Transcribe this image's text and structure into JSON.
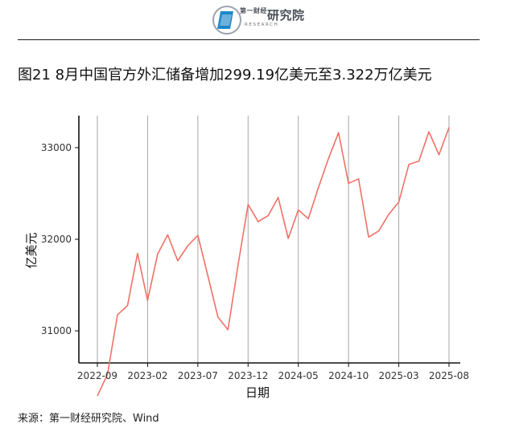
{
  "header": {
    "logo_text": "研究院",
    "logo_small": "第一财经",
    "logo_sub": "RESEARCH"
  },
  "title": "图21 8月中国官方外汇储备增加299.19亿美元至3.322万亿美元",
  "source": "来源：第一财经研究院、Wind",
  "colors": {
    "line": "#f07167",
    "grid": "#a6a6a6",
    "axis": "#111111"
  },
  "chart_data": {
    "type": "line",
    "xlabel": "日期",
    "ylabel": "亿美元",
    "x_ticks": [
      "2022-09",
      "2023-02",
      "2023-07",
      "2023-12",
      "2024-05",
      "2024-10",
      "2025-03",
      "2025-08"
    ],
    "y_ticks": [
      31000,
      32000,
      33000
    ],
    "ylim": [
      30650,
      33350
    ],
    "grid": "vertical",
    "series": [
      {
        "x": [
          "2022-09",
          "2022-10",
          "2022-11",
          "2022-12",
          "2023-01",
          "2023-02",
          "2023-03",
          "2023-04",
          "2023-05",
          "2023-06",
          "2023-07",
          "2023-08",
          "2023-09",
          "2023-10",
          "2023-11",
          "2023-12",
          "2024-01",
          "2024-02",
          "2024-03",
          "2024-04",
          "2024-05",
          "2024-06",
          "2024-07",
          "2024-08",
          "2024-09",
          "2024-10",
          "2024-11",
          "2024-12",
          "2025-01",
          "2025-02",
          "2025-03",
          "2025-04",
          "2025-05",
          "2025-06",
          "2025-07",
          "2025-08"
        ],
        "values": [
          30290,
          30524,
          31175,
          31277,
          31845,
          31332,
          31839,
          32048,
          31765,
          31930,
          32042,
          31601,
          31151,
          31012,
          31718,
          32380,
          32193,
          32258,
          32457,
          32009,
          32320,
          32224,
          32564,
          32882,
          33164,
          32611,
          32659,
          32024,
          32090,
          32272,
          32407,
          32817,
          32853,
          33174,
          32922,
          33222
        ]
      }
    ]
  }
}
